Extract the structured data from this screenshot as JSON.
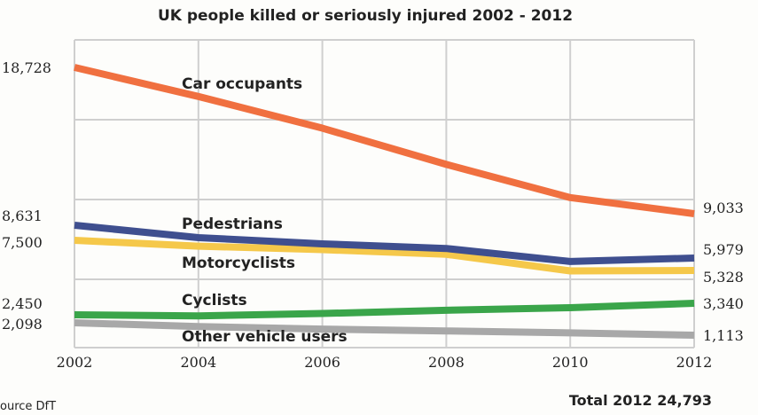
{
  "chart_data": {
    "type": "line",
    "title": "UK people killed or seriously injured 2002 - 2012",
    "x": [
      2002,
      2004,
      2006,
      2008,
      2010,
      2012
    ],
    "x_tick_labels": [
      "2002",
      "2004",
      "2006",
      "2008",
      "2010",
      "2012"
    ],
    "grid": true,
    "series": [
      {
        "name": "Car occupants",
        "values": [
          18728,
          16800,
          14700,
          12300,
          10100,
          9033
        ],
        "start_label": "18,728",
        "end_label": "9,033",
        "color": "#f07040"
      },
      {
        "name": "Pedestrians",
        "values": [
          8631,
          7700,
          7200,
          6800,
          5800,
          5979
        ],
        "start_label": "8,631",
        "end_label": "5,979",
        "color": "#3f4f8f"
      },
      {
        "name": "Motorcyclists",
        "values": [
          7500,
          7000,
          6700,
          6300,
          5300,
          5328
        ],
        "start_label": "7,500",
        "end_label": "5,328",
        "color": "#f5c84a"
      },
      {
        "name": "Cyclists",
        "values": [
          2450,
          2400,
          2550,
          2800,
          3000,
          3340
        ],
        "start_label": "2,450",
        "end_label": "3,340",
        "color": "#3aa54a"
      },
      {
        "name": "Other vehicle users",
        "values": [
          2098,
          1800,
          1600,
          1450,
          1300,
          1113
        ],
        "start_label": "2,098",
        "end_label": "1,113",
        "color": "#a8a8a8"
      }
    ],
    "footer": {
      "source": "ource DfT",
      "total": "Total 2012  24,793"
    }
  }
}
